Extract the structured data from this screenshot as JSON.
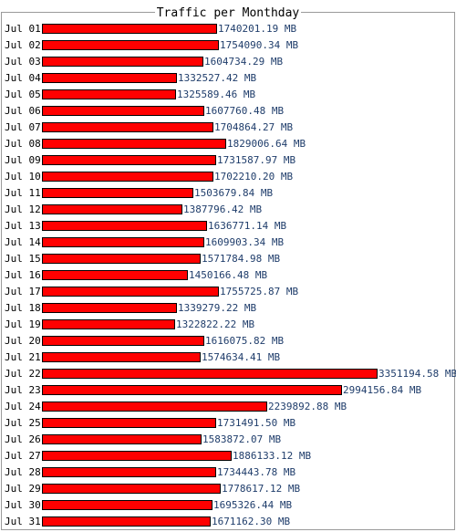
{
  "chart_data": {
    "type": "bar",
    "orientation": "horizontal",
    "title": "Traffic per Monthday",
    "unit": "MB",
    "bar_color": "#ff0000",
    "value_text_color": "#1f3d6b",
    "categories": [
      "Jul 01",
      "Jul 02",
      "Jul 03",
      "Jul 04",
      "Jul 05",
      "Jul 06",
      "Jul 07",
      "Jul 08",
      "Jul 09",
      "Jul 10",
      "Jul 11",
      "Jul 12",
      "Jul 13",
      "Jul 14",
      "Jul 15",
      "Jul 16",
      "Jul 17",
      "Jul 18",
      "Jul 19",
      "Jul 20",
      "Jul 21",
      "Jul 22",
      "Jul 23",
      "Jul 24",
      "Jul 25",
      "Jul 26",
      "Jul 27",
      "Jul 28",
      "Jul 29",
      "Jul 30",
      "Jul 31"
    ],
    "values": [
      1740201.19,
      1754090.34,
      1604734.29,
      1332527.42,
      1325589.46,
      1607760.48,
      1704864.27,
      1829006.64,
      1731587.97,
      1702210.2,
      1503679.84,
      1387796.42,
      1636771.14,
      1609903.34,
      1571784.98,
      1450166.48,
      1755725.87,
      1339279.22,
      1322822.22,
      1616075.82,
      1574634.41,
      3351194.58,
      2994156.84,
      2239892.88,
      1731491.5,
      1583872.07,
      1886133.12,
      1734443.78,
      1778617.12,
      1695326.44,
      1671162.3
    ],
    "labels": [
      "1740201.19 MB",
      "1754090.34 MB",
      "1604734.29 MB",
      "1332527.42 MB",
      "1325589.46 MB",
      "1607760.48 MB",
      "1704864.27 MB",
      "1829006.64 MB",
      "1731587.97 MB",
      "1702210.20 MB",
      "1503679.84 MB",
      "1387796.42 MB",
      "1636771.14 MB",
      "1609903.34 MB",
      "1571784.98 MB",
      "1450166.48 MB",
      "1755725.87 MB",
      "1339279.22 MB",
      "1322822.22 MB",
      "1616075.82 MB",
      "1574634.41 MB",
      "3351194.58 MB",
      "2994156.84 MB",
      "2239892.88 MB",
      "1731491.50 MB",
      "1583872.07 MB",
      "1886133.12 MB",
      "1734443.78 MB",
      "1778617.12 MB",
      "1695326.44 MB",
      "1671162.30 MB"
    ]
  }
}
